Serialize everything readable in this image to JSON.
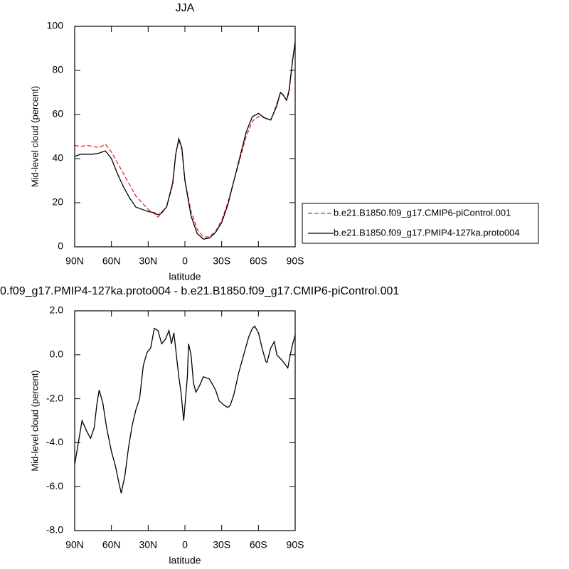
{
  "chart_data": [
    {
      "type": "line",
      "title": "JJA",
      "x_label": "latitude",
      "y_label": "Mid-level cloud (percent)",
      "x": [
        90,
        85,
        80,
        75,
        70,
        65,
        60,
        55,
        50,
        45,
        40,
        35,
        30,
        25,
        22,
        20,
        15,
        10,
        7.5,
        5,
        2.5,
        0,
        -5,
        -10,
        -15,
        -20,
        -25,
        -30,
        -35,
        -40,
        -45,
        -50,
        -55,
        -60,
        -65,
        -70,
        -72,
        -75,
        -78,
        -80,
        -83,
        -85,
        -88,
        -90
      ],
      "series": [
        {
          "name": "b.e21.B1850.f09_g17.CMIP6-piControl.001",
          "color": "#e8262b",
          "line_style": "dashed",
          "values": [
            46,
            45.5,
            46,
            45.5,
            45,
            46.5,
            43,
            38,
            33,
            28,
            23,
            20,
            17,
            15,
            13.5,
            14.5,
            18,
            28,
            42,
            48.5,
            44,
            30,
            16,
            8,
            4.5,
            4.5,
            7,
            12,
            20,
            30,
            40,
            50,
            57,
            59,
            58.5,
            57.5,
            60,
            65,
            70,
            69,
            66.5,
            70,
            85,
            93
          ]
        },
        {
          "name": "b.e21.B1850.f09_g17.PMIP4-127ka.proto004",
          "color": "#000000",
          "line_style": "solid",
          "values": [
            41,
            42,
            42,
            42,
            42.5,
            43.5,
            40,
            33,
            27,
            22,
            18,
            17,
            16,
            15.5,
            14.5,
            15,
            18,
            29,
            42,
            49,
            45,
            30,
            14,
            6,
            3.5,
            4,
            6.5,
            11,
            19,
            30,
            41,
            52,
            59,
            60.5,
            58.5,
            57.5,
            60,
            64,
            70,
            69,
            66.5,
            71,
            85,
            93
          ]
        }
      ],
      "xlim": [
        90,
        -90
      ],
      "xticks": [
        {
          "value": 90,
          "label": "90N"
        },
        {
          "value": 60,
          "label": "60N"
        },
        {
          "value": 30,
          "label": "30N"
        },
        0,
        {
          "value": -30,
          "label": "30S"
        },
        {
          "value": -60,
          "label": "60S"
        },
        {
          "value": -90,
          "label": "90S"
        }
      ],
      "ylim": [
        0,
        100
      ],
      "yticks": [
        0,
        20,
        40,
        60,
        80,
        100
      ],
      "legend": "right"
    },
    {
      "type": "line",
      "title": "0.f09_g17.PMIP4-127ka.proto004 - b.e21.B1850.f09_g17.CMIP6-piControl.001",
      "x_label": "latitude",
      "y_label": "Mid-level cloud (percent)",
      "x": [
        90,
        87,
        84,
        80,
        77,
        74,
        72,
        70,
        67,
        64,
        60,
        57,
        54,
        52,
        49,
        46,
        43,
        40,
        37,
        34,
        31,
        28,
        25,
        22,
        19,
        16,
        13,
        11,
        9,
        7,
        5,
        3,
        1,
        -2,
        -3,
        -5,
        -7,
        -9,
        -12,
        -15,
        -20,
        -25,
        -28,
        -32,
        -35,
        -37,
        -40,
        -44,
        -48,
        -52,
        -55,
        -57,
        -60,
        -63,
        -66,
        -67,
        -70,
        -73,
        -75,
        -80,
        -84,
        -86,
        -88,
        -90
      ],
      "values": [
        -5,
        -4,
        -3,
        -3.5,
        -3.8,
        -3.3,
        -2.3,
        -1.6,
        -2.2,
        -3.3,
        -4.4,
        -5,
        -5.8,
        -6.3,
        -5.5,
        -4.2,
        -3.2,
        -2.5,
        -2,
        -0.5,
        0.1,
        0.3,
        1.2,
        1.1,
        0.5,
        0.7,
        1.1,
        0.5,
        1,
        0,
        -1,
        -1.8,
        -3,
        -1,
        0.5,
        0,
        -1.3,
        -1.7,
        -1.4,
        -1,
        -1.1,
        -1.6,
        -2.1,
        -2.3,
        -2.4,
        -2.3,
        -1.8,
        -0.8,
        0,
        0.8,
        1.2,
        1.3,
        1,
        0.3,
        -0.3,
        -0.35,
        0.3,
        0.6,
        0,
        -0.3,
        -0.6,
        0,
        0.5,
        0.9
      ],
      "color": "#000000",
      "xlim": [
        90,
        -90
      ],
      "xticks": [
        {
          "value": 90,
          "label": "90N"
        },
        {
          "value": 60,
          "label": "60N"
        },
        {
          "value": 30,
          "label": "30N"
        },
        0,
        {
          "value": -30,
          "label": "30S"
        },
        {
          "value": -60,
          "label": "60S"
        },
        {
          "value": -90,
          "label": "90S"
        }
      ],
      "ylim": [
        -8,
        2
      ],
      "yticks": [
        {
          "value": -8,
          "label": "-8.0"
        },
        {
          "value": -6,
          "label": "-6.0"
        },
        {
          "value": -4,
          "label": "-4.0"
        },
        {
          "value": -2,
          "label": "-2.0"
        },
        {
          "value": 0,
          "label": "0.0"
        },
        {
          "value": 2,
          "label": "2.0"
        }
      ]
    }
  ]
}
